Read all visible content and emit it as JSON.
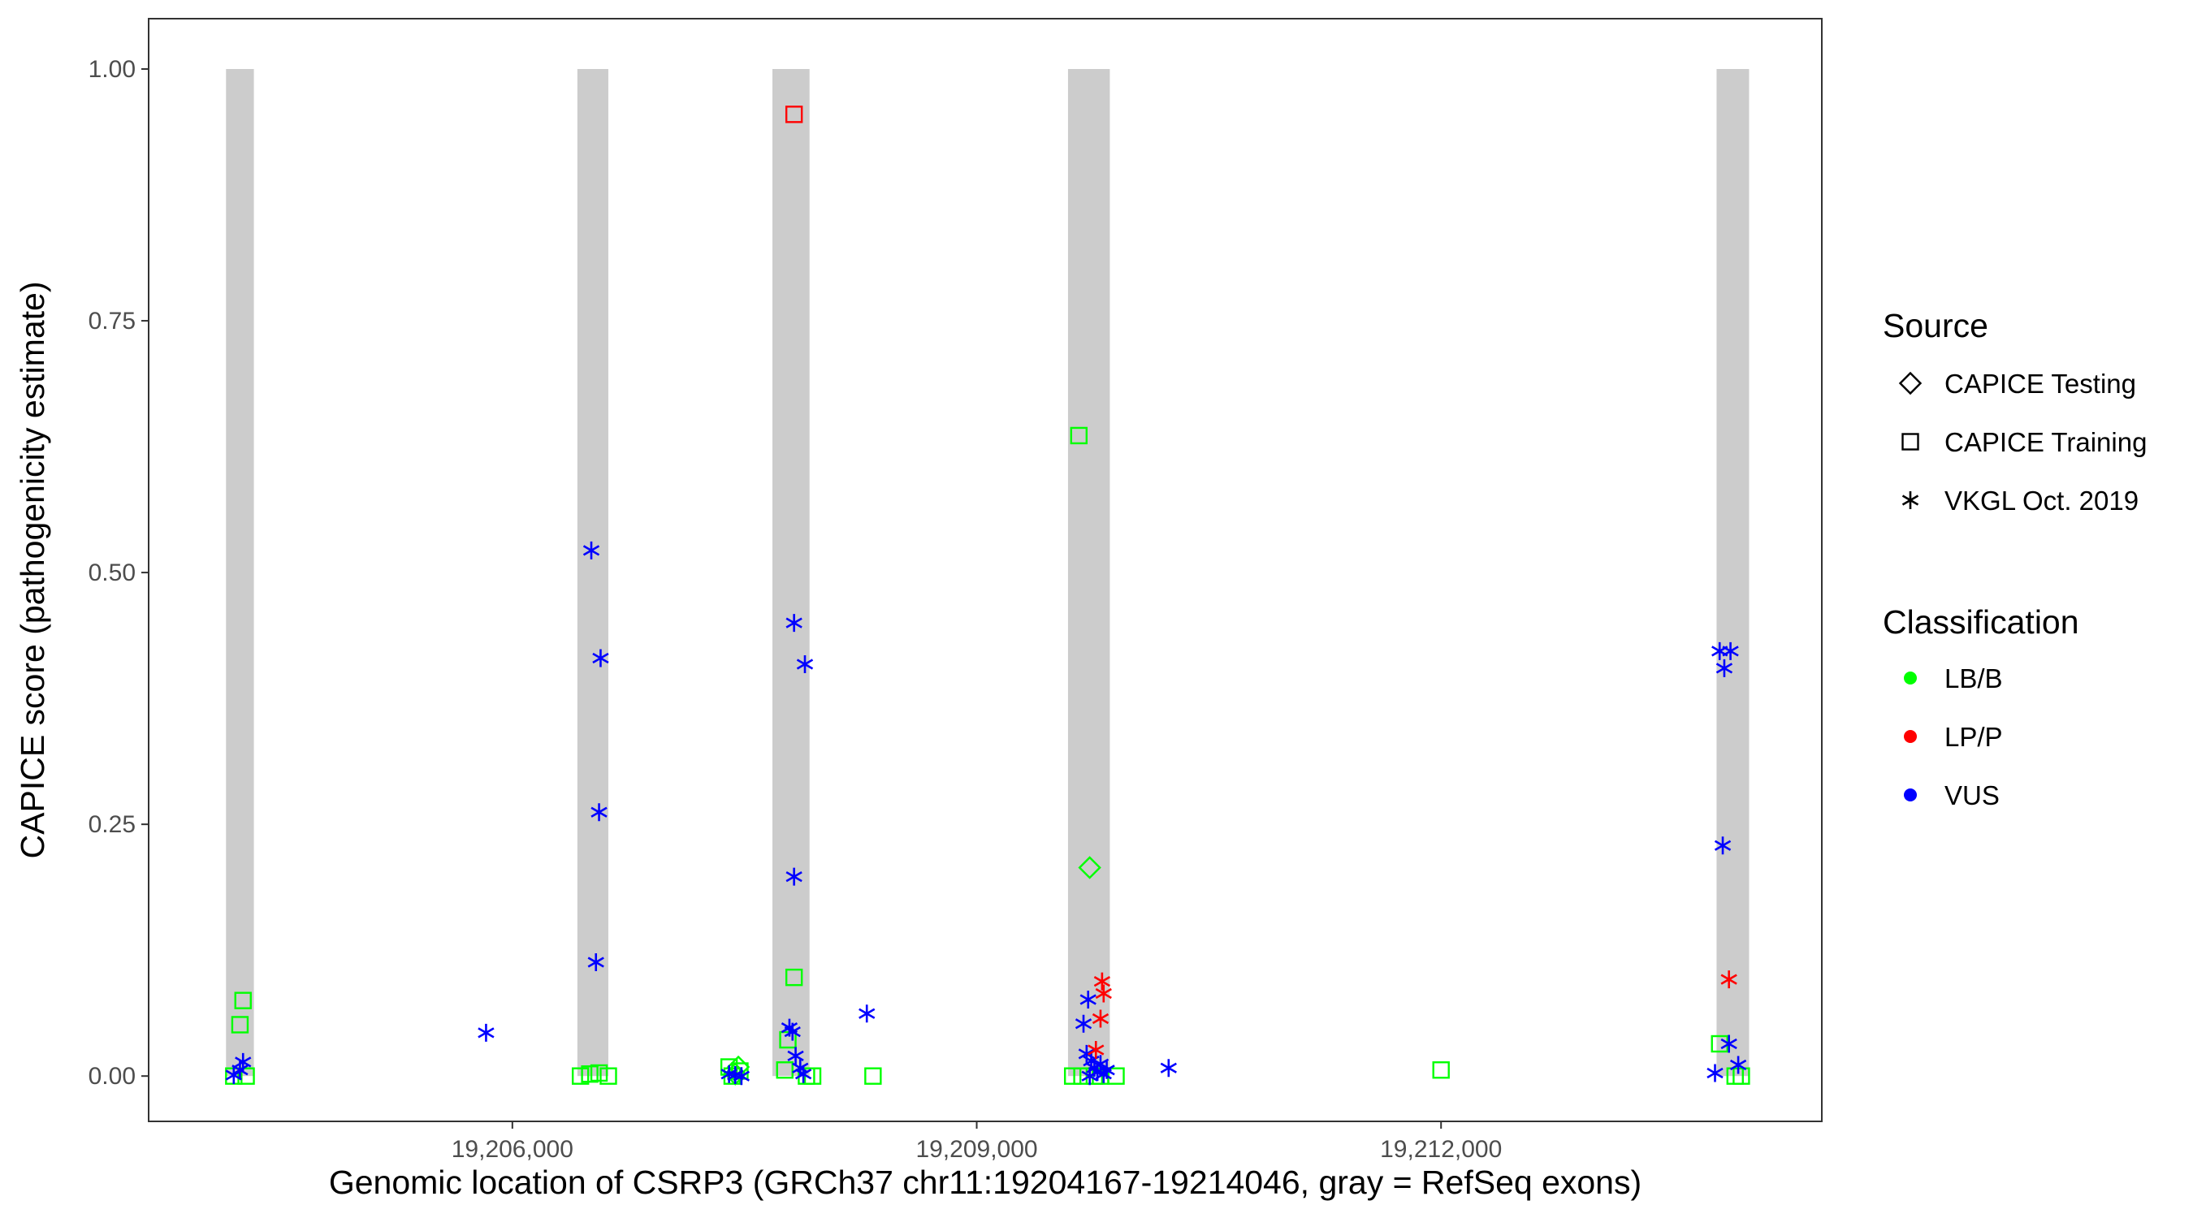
{
  "chart_data": {
    "type": "scatter",
    "title": "",
    "xlabel": "Genomic location of CSRP3 (GRCh37 chr11:19204167-19214046, gray = RefSeq exons)",
    "ylabel": "CAPICE score (pathogenicity estimate)",
    "xlim": [
      19203650,
      19214460
    ],
    "ylim": [
      -0.045,
      1.05
    ],
    "x_ticks": [
      19206000,
      19209000,
      19212000
    ],
    "x_tick_labels": [
      "19,206,000",
      "19,209,000",
      "19,212,000"
    ],
    "y_ticks": [
      0,
      0.25,
      0.5,
      0.75,
      1.0
    ],
    "y_tick_labels": [
      "0.00",
      "0.25",
      "0.50",
      "0.75",
      "1.00"
    ],
    "grid": false,
    "exons": [
      {
        "start": 19204150,
        "end": 19204330
      },
      {
        "start": 19206420,
        "end": 19206620
      },
      {
        "start": 19207680,
        "end": 19207920
      },
      {
        "start": 19209590,
        "end": 19209860
      },
      {
        "start": 19213780,
        "end": 19213990
      }
    ],
    "legend_position": "right",
    "legend": {
      "source_title": "Source",
      "source_items": [
        {
          "label": "CAPICE Testing",
          "shape": "diamond"
        },
        {
          "label": "CAPICE Training",
          "shape": "square"
        },
        {
          "label": "VKGL Oct. 2019",
          "shape": "asterisk"
        }
      ],
      "class_title": "Classification",
      "class_items": [
        {
          "label": "LB/B",
          "color": "#00ff00"
        },
        {
          "label": "LP/P",
          "color": "#ff0000"
        },
        {
          "label": "VUS",
          "color": "#0000ff"
        }
      ]
    },
    "colors": {
      "LB/B": "#00ff00",
      "LP/P": "#ff0000",
      "VUS": "#0000ff",
      "exon": "#cccccc"
    },
    "series": [
      {
        "source": "CAPICE Training",
        "shape": "square",
        "points": [
          {
            "x": 19204260,
            "y": 0.075,
            "class": "LB/B"
          },
          {
            "x": 19204240,
            "y": 0.051,
            "class": "LB/B"
          },
          {
            "x": 19204280,
            "y": 0.0,
            "class": "LB/B"
          },
          {
            "x": 19204200,
            "y": 0.0,
            "class": "LB/B"
          },
          {
            "x": 19206440,
            "y": 0.0,
            "class": "LB/B"
          },
          {
            "x": 19206500,
            "y": 0.002,
            "class": "LB/B"
          },
          {
            "x": 19206560,
            "y": 0.003,
            "class": "LB/B"
          },
          {
            "x": 19206620,
            "y": 0.0,
            "class": "LB/B"
          },
          {
            "x": 19207400,
            "y": 0.009,
            "class": "LB/B"
          },
          {
            "x": 19207420,
            "y": 0.0,
            "class": "LB/B"
          },
          {
            "x": 19207470,
            "y": 0.005,
            "class": "LB/B"
          },
          {
            "x": 19207760,
            "y": 0.006,
            "class": "LB/B"
          },
          {
            "x": 19207780,
            "y": 0.036,
            "class": "LB/B"
          },
          {
            "x": 19207820,
            "y": 0.098,
            "class": "LB/B"
          },
          {
            "x": 19207820,
            "y": 0.955,
            "class": "LP/P"
          },
          {
            "x": 19207900,
            "y": 0.0,
            "class": "LB/B"
          },
          {
            "x": 19207940,
            "y": 0.0,
            "class": "LB/B"
          },
          {
            "x": 19208330,
            "y": 0.0,
            "class": "LB/B"
          },
          {
            "x": 19209660,
            "y": 0.636,
            "class": "LB/B"
          },
          {
            "x": 19209620,
            "y": 0.0,
            "class": "LB/B"
          },
          {
            "x": 19209680,
            "y": 0.0,
            "class": "LB/B"
          },
          {
            "x": 19209760,
            "y": 0.0,
            "class": "LB/B"
          },
          {
            "x": 19209800,
            "y": 0.0,
            "class": "LB/B"
          },
          {
            "x": 19209900,
            "y": 0.0,
            "class": "LB/B"
          },
          {
            "x": 19212000,
            "y": 0.006,
            "class": "LB/B"
          },
          {
            "x": 19213800,
            "y": 0.032,
            "class": "LB/B"
          },
          {
            "x": 19213900,
            "y": 0.0,
            "class": "LB/B"
          },
          {
            "x": 19213940,
            "y": 0.0,
            "class": "LB/B"
          }
        ]
      },
      {
        "source": "CAPICE Testing",
        "shape": "diamond",
        "points": [
          {
            "x": 19209730,
            "y": 0.207,
            "class": "LB/B"
          },
          {
            "x": 19207460,
            "y": 0.009,
            "class": "LB/B"
          },
          {
            "x": 19207440,
            "y": 0.002,
            "class": "LB/B"
          }
        ]
      },
      {
        "source": "VKGL Oct. 2019",
        "shape": "asterisk",
        "points": [
          {
            "x": 19204200,
            "y": 0.001,
            "class": "VUS"
          },
          {
            "x": 19204240,
            "y": 0.006,
            "class": "VUS"
          },
          {
            "x": 19204260,
            "y": 0.014,
            "class": "VUS"
          },
          {
            "x": 19205830,
            "y": 0.043,
            "class": "VUS"
          },
          {
            "x": 19206510,
            "y": 0.522,
            "class": "VUS"
          },
          {
            "x": 19206570,
            "y": 0.415,
            "class": "VUS"
          },
          {
            "x": 19206560,
            "y": 0.262,
            "class": "VUS"
          },
          {
            "x": 19206540,
            "y": 0.113,
            "class": "VUS"
          },
          {
            "x": 19207400,
            "y": 0.002,
            "class": "VUS"
          },
          {
            "x": 19207440,
            "y": 0.001,
            "class": "VUS"
          },
          {
            "x": 19207480,
            "y": 0.0,
            "class": "VUS"
          },
          {
            "x": 19207820,
            "y": 0.45,
            "class": "VUS"
          },
          {
            "x": 19207890,
            "y": 0.409,
            "class": "VUS"
          },
          {
            "x": 19207820,
            "y": 0.198,
            "class": "VUS"
          },
          {
            "x": 19207790,
            "y": 0.048,
            "class": "VUS"
          },
          {
            "x": 19207810,
            "y": 0.044,
            "class": "VUS"
          },
          {
            "x": 19207830,
            "y": 0.02,
            "class": "VUS"
          },
          {
            "x": 19207860,
            "y": 0.008,
            "class": "VUS"
          },
          {
            "x": 19207880,
            "y": 0.002,
            "class": "VUS"
          },
          {
            "x": 19208290,
            "y": 0.062,
            "class": "VUS"
          },
          {
            "x": 19209720,
            "y": 0.076,
            "class": "VUS"
          },
          {
            "x": 19209690,
            "y": 0.052,
            "class": "VUS"
          },
          {
            "x": 19209710,
            "y": 0.022,
            "class": "VUS"
          },
          {
            "x": 19209740,
            "y": 0.015,
            "class": "VUS"
          },
          {
            "x": 19209760,
            "y": 0.008,
            "class": "VUS"
          },
          {
            "x": 19209780,
            "y": 0.004,
            "class": "VUS"
          },
          {
            "x": 19209800,
            "y": 0.012,
            "class": "VUS"
          },
          {
            "x": 19209820,
            "y": 0.002,
            "class": "VUS"
          },
          {
            "x": 19209730,
            "y": 0.0,
            "class": "VUS"
          },
          {
            "x": 19209840,
            "y": 0.006,
            "class": "VUS"
          },
          {
            "x": 19209810,
            "y": 0.094,
            "class": "LP/P"
          },
          {
            "x": 19209820,
            "y": 0.082,
            "class": "LP/P"
          },
          {
            "x": 19209800,
            "y": 0.057,
            "class": "LP/P"
          },
          {
            "x": 19209770,
            "y": 0.026,
            "class": "LP/P"
          },
          {
            "x": 19210240,
            "y": 0.008,
            "class": "VUS"
          },
          {
            "x": 19213800,
            "y": 0.422,
            "class": "VUS"
          },
          {
            "x": 19213870,
            "y": 0.422,
            "class": "VUS"
          },
          {
            "x": 19213830,
            "y": 0.405,
            "class": "VUS"
          },
          {
            "x": 19213820,
            "y": 0.229,
            "class": "VUS"
          },
          {
            "x": 19213860,
            "y": 0.096,
            "class": "LP/P"
          },
          {
            "x": 19213860,
            "y": 0.032,
            "class": "VUS"
          },
          {
            "x": 19213920,
            "y": 0.011,
            "class": "VUS"
          },
          {
            "x": 19213770,
            "y": 0.003,
            "class": "VUS"
          }
        ]
      }
    ]
  }
}
